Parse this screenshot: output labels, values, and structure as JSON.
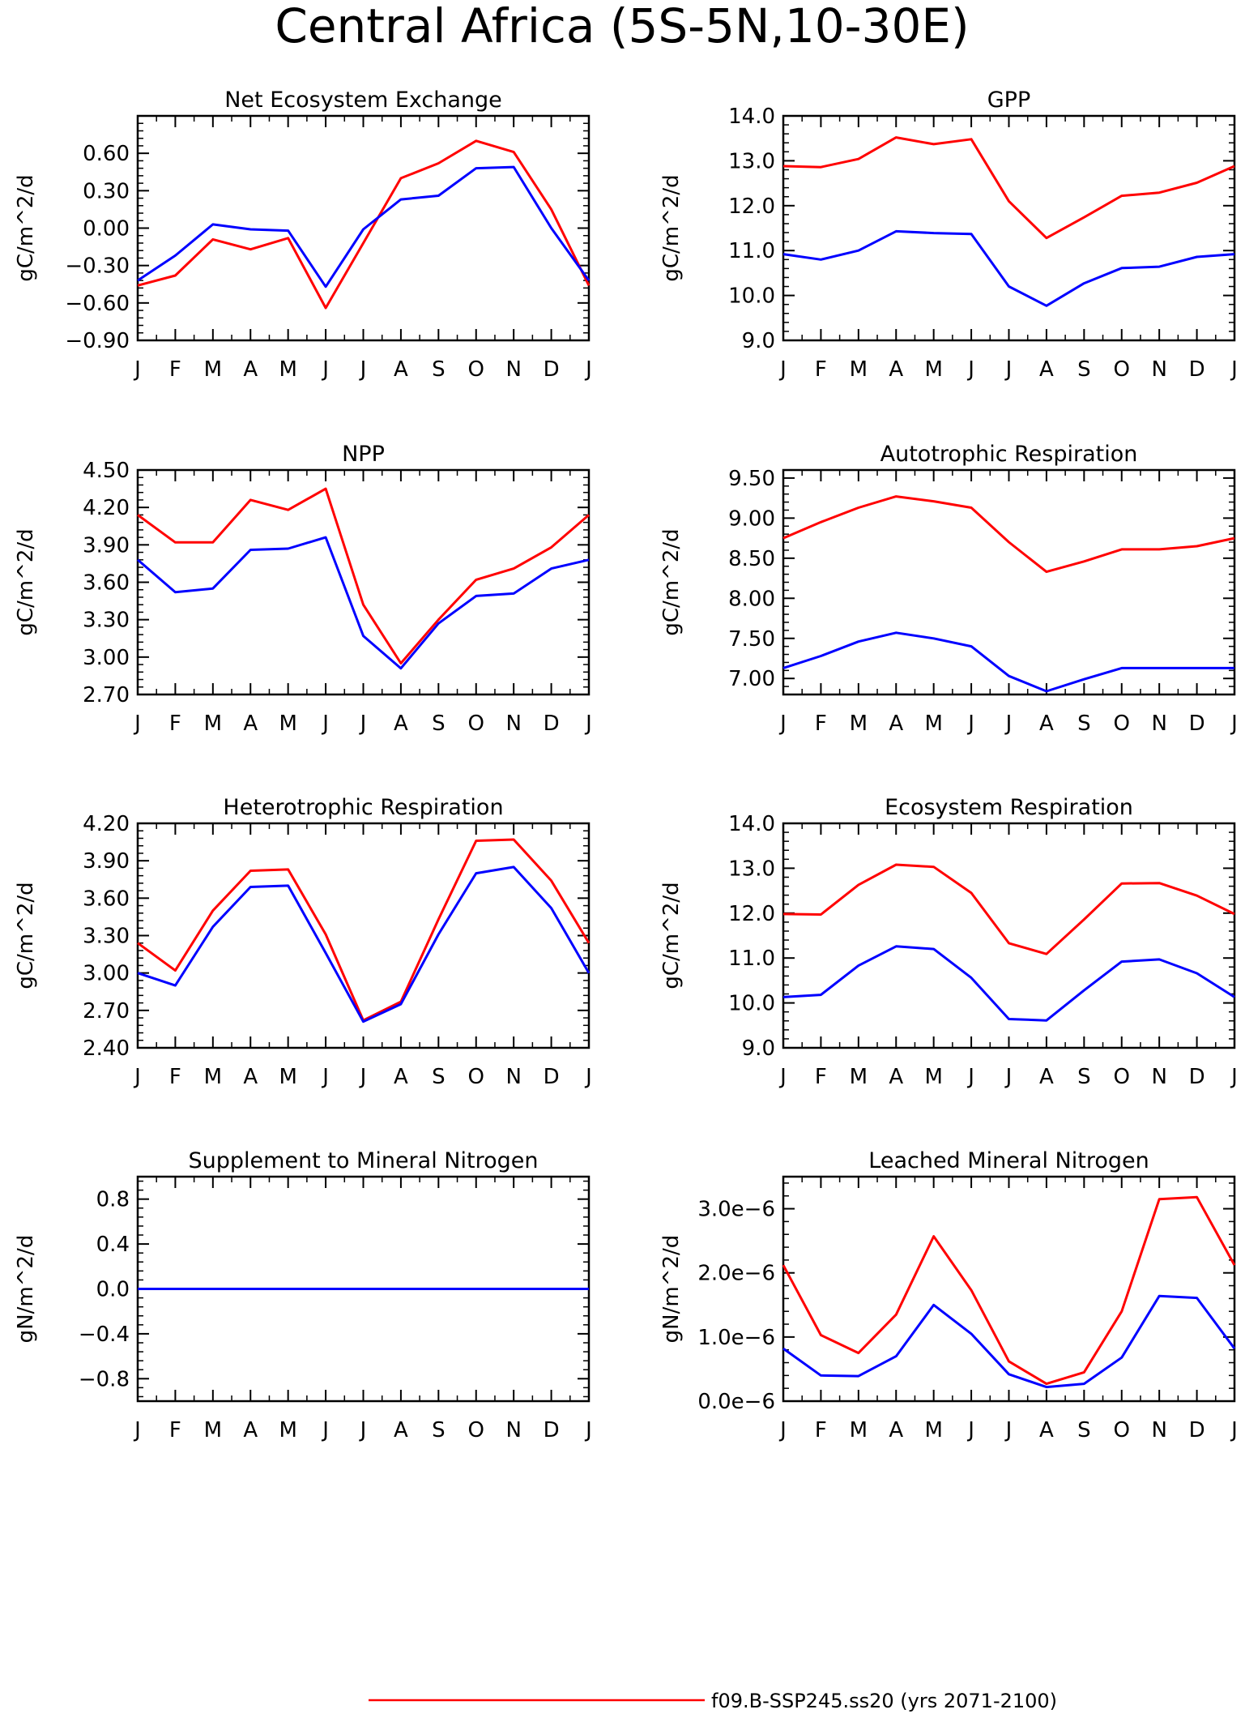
{
  "title": "Central Africa (5S-5N,10-30E)",
  "colors": {
    "case_a": "#ff0000",
    "case_b": "#0000ff",
    "axis": "#000000"
  },
  "legend": {
    "entries": [
      {
        "label": "f09.B-SSP245.ss20 (yrs 2071-2100)",
        "color": "#ff0000"
      }
    ]
  },
  "chart_data": [
    {
      "type": "line",
      "title": "Net Ecosystem Exchange",
      "ylabel": "gC/m^2/d",
      "categories": [
        "J",
        "F",
        "M",
        "A",
        "M",
        "J",
        "J",
        "A",
        "S",
        "O",
        "N",
        "D",
        "J"
      ],
      "ylim": [
        -0.9,
        0.9
      ],
      "yticks": [
        -0.9,
        -0.6,
        -0.3,
        0.0,
        0.3,
        0.6
      ],
      "ytick_labels": [
        "−0.90",
        "−0.60",
        "−0.30",
        "0.00",
        "0.30",
        "0.60"
      ],
      "series": [
        {
          "color": "#ff0000",
          "values": [
            -0.46,
            -0.38,
            -0.09,
            -0.17,
            -0.08,
            -0.64,
            -0.12,
            0.4,
            0.52,
            0.7,
            0.61,
            0.15,
            -0.46
          ]
        },
        {
          "color": "#0000ff",
          "values": [
            -0.42,
            -0.22,
            0.03,
            -0.01,
            -0.02,
            -0.47,
            -0.01,
            0.23,
            0.26,
            0.48,
            0.49,
            0.0,
            -0.42
          ]
        }
      ]
    },
    {
      "type": "line",
      "title": "GPP",
      "ylabel": "gC/m^2/d",
      "categories": [
        "J",
        "F",
        "M",
        "A",
        "M",
        "J",
        "J",
        "A",
        "S",
        "O",
        "N",
        "D",
        "J"
      ],
      "ylim": [
        9.0,
        14.0
      ],
      "yticks": [
        9,
        10,
        11,
        12,
        13,
        14
      ],
      "ytick_labels": [
        "9.0",
        "10.0",
        "11.0",
        "12.0",
        "13.0",
        "14.0"
      ],
      "series": [
        {
          "color": "#ff0000",
          "values": [
            12.88,
            12.86,
            13.04,
            13.52,
            13.37,
            13.48,
            12.1,
            11.28,
            11.74,
            12.22,
            12.29,
            12.51,
            12.88
          ]
        },
        {
          "color": "#0000ff",
          "values": [
            10.92,
            10.8,
            11.0,
            11.43,
            11.39,
            11.37,
            10.2,
            9.77,
            10.27,
            10.61,
            10.64,
            10.86,
            10.92
          ]
        }
      ]
    },
    {
      "type": "line",
      "title": "NPP",
      "ylabel": "gC/m^2/d",
      "categories": [
        "J",
        "F",
        "M",
        "A",
        "M",
        "J",
        "J",
        "A",
        "S",
        "O",
        "N",
        "D",
        "J"
      ],
      "ylim": [
        2.7,
        4.5
      ],
      "yticks": [
        2.7,
        3.0,
        3.3,
        3.6,
        3.9,
        4.2,
        4.5
      ],
      "ytick_labels": [
        "2.70",
        "3.00",
        "3.30",
        "3.60",
        "3.90",
        "4.20",
        "4.50"
      ],
      "series": [
        {
          "color": "#ff0000",
          "values": [
            4.14,
            3.92,
            3.92,
            4.26,
            4.18,
            4.35,
            3.42,
            2.95,
            3.3,
            3.62,
            3.71,
            3.88,
            4.14
          ]
        },
        {
          "color": "#0000ff",
          "values": [
            3.78,
            3.52,
            3.55,
            3.86,
            3.87,
            3.96,
            3.17,
            2.91,
            3.27,
            3.49,
            3.51,
            3.71,
            3.78
          ]
        }
      ]
    },
    {
      "type": "line",
      "title": "Autotrophic Respiration",
      "ylabel": "gC/m^2/d",
      "categories": [
        "J",
        "F",
        "M",
        "A",
        "M",
        "J",
        "J",
        "A",
        "S",
        "O",
        "N",
        "D",
        "J"
      ],
      "ylim": [
        6.8,
        9.6
      ],
      "yticks": [
        7.0,
        7.5,
        8.0,
        8.5,
        9.0,
        9.5
      ],
      "ytick_labels": [
        "7.00",
        "7.50",
        "8.00",
        "8.50",
        "9.00",
        "9.50"
      ],
      "series": [
        {
          "color": "#ff0000",
          "values": [
            8.75,
            8.95,
            9.13,
            9.27,
            9.21,
            9.13,
            8.7,
            8.33,
            8.46,
            8.61,
            8.61,
            8.65,
            8.75
          ]
        },
        {
          "color": "#0000ff",
          "values": [
            7.13,
            7.28,
            7.46,
            7.57,
            7.5,
            7.4,
            7.03,
            6.84,
            6.99,
            7.13,
            7.13,
            7.13,
            7.13
          ]
        }
      ]
    },
    {
      "type": "line",
      "title": "Heterotrophic Respiration",
      "ylabel": "gC/m^2/d",
      "categories": [
        "J",
        "F",
        "M",
        "A",
        "M",
        "J",
        "J",
        "A",
        "S",
        "O",
        "N",
        "D",
        "J"
      ],
      "ylim": [
        2.4,
        4.2
      ],
      "yticks": [
        2.4,
        2.7,
        3.0,
        3.3,
        3.6,
        3.9,
        4.2
      ],
      "ytick_labels": [
        "2.40",
        "2.70",
        "3.00",
        "3.30",
        "3.60",
        "3.90",
        "4.20"
      ],
      "series": [
        {
          "color": "#ff0000",
          "values": [
            3.24,
            3.02,
            3.5,
            3.82,
            3.83,
            3.31,
            2.62,
            2.77,
            3.43,
            4.06,
            4.07,
            3.74,
            3.24
          ]
        },
        {
          "color": "#0000ff",
          "values": [
            3.0,
            2.9,
            3.37,
            3.69,
            3.7,
            3.16,
            2.61,
            2.75,
            3.31,
            3.8,
            3.85,
            3.52,
            3.0
          ]
        }
      ]
    },
    {
      "type": "line",
      "title": "Ecosystem Respiration",
      "ylabel": "gC/m^2/d",
      "categories": [
        "J",
        "F",
        "M",
        "A",
        "M",
        "J",
        "J",
        "A",
        "S",
        "O",
        "N",
        "D",
        "J"
      ],
      "ylim": [
        9.0,
        14.0
      ],
      "yticks": [
        9,
        10,
        11,
        12,
        13,
        14
      ],
      "ytick_labels": [
        "9.0",
        "10.0",
        "11.0",
        "12.0",
        "13.0",
        "14.0"
      ],
      "series": [
        {
          "color": "#ff0000",
          "values": [
            11.98,
            11.97,
            12.63,
            13.08,
            13.03,
            12.45,
            11.33,
            11.09,
            11.86,
            12.66,
            12.67,
            12.39,
            11.98
          ]
        },
        {
          "color": "#0000ff",
          "values": [
            10.13,
            10.18,
            10.83,
            11.26,
            11.2,
            10.56,
            9.64,
            9.61,
            10.28,
            10.92,
            10.97,
            10.66,
            10.13
          ]
        }
      ]
    },
    {
      "type": "line",
      "title": "Supplement to Mineral Nitrogen",
      "ylabel": "gN/m^2/d",
      "categories": [
        "J",
        "F",
        "M",
        "A",
        "M",
        "J",
        "J",
        "A",
        "S",
        "O",
        "N",
        "D",
        "J"
      ],
      "ylim": [
        -1.0,
        1.0
      ],
      "yticks": [
        -0.8,
        -0.4,
        0.0,
        0.4,
        0.8
      ],
      "ytick_labels": [
        "−0.8",
        "−0.4",
        "0.0",
        "0.4",
        "0.8"
      ],
      "series": [
        {
          "color": "#ff0000",
          "values": [
            0,
            0,
            0,
            0,
            0,
            0,
            0,
            0,
            0,
            0,
            0,
            0,
            0
          ]
        },
        {
          "color": "#0000ff",
          "values": [
            0,
            0,
            0,
            0,
            0,
            0,
            0,
            0,
            0,
            0,
            0,
            0,
            0
          ]
        }
      ]
    },
    {
      "type": "line",
      "title": "Leached Mineral Nitrogen",
      "ylabel": "gN/m^2/d",
      "categories": [
        "J",
        "F",
        "M",
        "A",
        "M",
        "J",
        "J",
        "A",
        "S",
        "O",
        "N",
        "D",
        "J"
      ],
      "ylim": [
        0.0,
        3.5e-06
      ],
      "yticks": [
        0.0,
        1e-06,
        2e-06,
        3e-06
      ],
      "ytick_labels": [
        "0.0e−6",
        "1.0e−6",
        "2.0e−6",
        "3.0e−6"
      ],
      "series": [
        {
          "color": "#ff0000",
          "values": [
            2.12e-06,
            1.03e-06,
            7.5e-07,
            1.35e-06,
            2.57e-06,
            1.73e-06,
            6.2e-07,
            2.7e-07,
            4.5e-07,
            1.4e-06,
            3.15e-06,
            3.18e-06,
            2.12e-06
          ]
        },
        {
          "color": "#0000ff",
          "values": [
            8.2e-07,
            4e-07,
            3.9e-07,
            7e-07,
            1.5e-06,
            1.05e-06,
            4.2e-07,
            2.2e-07,
            2.7e-07,
            6.8e-07,
            1.64e-06,
            1.61e-06,
            8.2e-07
          ]
        }
      ]
    }
  ]
}
